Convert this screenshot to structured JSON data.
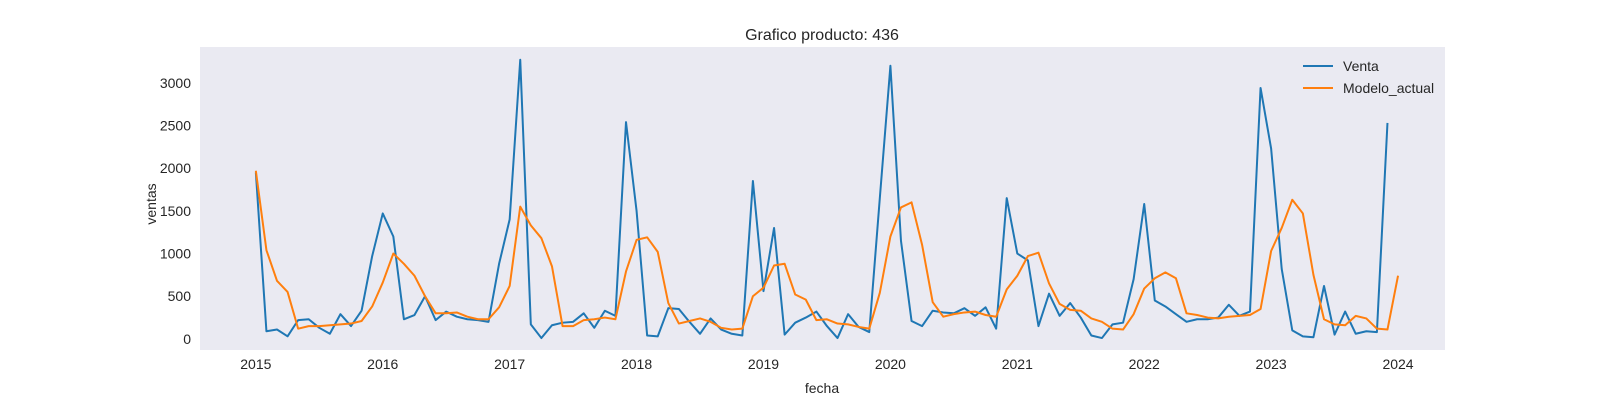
{
  "chart_data": {
    "type": "line",
    "title": "Grafico producto: 436",
    "xlabel": "fecha",
    "ylabel": "ventas",
    "x_start": "2015-01",
    "x_step": "month",
    "xlim": [
      2014.56,
      2024.37
    ],
    "ylim": [
      -130,
      3420
    ],
    "grid": false,
    "legend_position": "top-right",
    "xticks": [
      2015,
      2016,
      2017,
      2018,
      2019,
      2020,
      2021,
      2022,
      2023,
      2024
    ],
    "yticks": [
      0,
      500,
      1000,
      1500,
      2000,
      2500,
      3000
    ],
    "background_color": "#eaeaf2",
    "series": [
      {
        "name": "Venta",
        "color": "#1f77b4",
        "values": [
          1950,
          90,
          110,
          30,
          220,
          230,
          130,
          60,
          290,
          150,
          330,
          970,
          1470,
          1200,
          230,
          280,
          500,
          220,
          320,
          260,
          230,
          220,
          200,
          880,
          1400,
          3270,
          170,
          10,
          160,
          190,
          200,
          300,
          130,
          330,
          270,
          2540,
          1500,
          40,
          30,
          360,
          350,
          200,
          60,
          240,
          110,
          60,
          40,
          1850,
          560,
          1300,
          50,
          190,
          250,
          320,
          150,
          10,
          290,
          140,
          80,
          1650,
          3200,
          1150,
          210,
          150,
          330,
          310,
          300,
          360,
          270,
          370,
          120,
          1650,
          1000,
          920,
          150,
          530,
          270,
          420,
          250,
          40,
          10,
          170,
          190,
          700,
          1580,
          450,
          380,
          290,
          200,
          230,
          230,
          250,
          400,
          270,
          320,
          2940,
          2230,
          820,
          100,
          30,
          20,
          620,
          50,
          320,
          60,
          90,
          80,
          2530
        ]
      },
      {
        "name": "Modelo_actual",
        "color": "#ff7f0e",
        "values": [
          1970,
          1040,
          680,
          550,
          120,
          150,
          150,
          160,
          170,
          180,
          210,
          380,
          660,
          1000,
          880,
          740,
          500,
          300,
          300,
          310,
          260,
          230,
          230,
          370,
          620,
          1550,
          1330,
          1180,
          850,
          150,
          150,
          220,
          230,
          250,
          230,
          790,
          1160,
          1190,
          1020,
          420,
          180,
          210,
          240,
          200,
          130,
          110,
          120,
          500,
          600,
          860,
          880,
          520,
          460,
          220,
          230,
          180,
          170,
          140,
          120,
          540,
          1200,
          1540,
          1600,
          1100,
          430,
          260,
          290,
          310,
          320,
          280,
          260,
          580,
          740,
          970,
          1010,
          650,
          410,
          340,
          330,
          240,
          200,
          120,
          110,
          290,
          590,
          710,
          780,
          710,
          300,
          280,
          250,
          240,
          260,
          270,
          280,
          350,
          1030,
          1300,
          1630,
          1470,
          750,
          230,
          170,
          160,
          270,
          240,
          120,
          110,
          740
        ]
      }
    ]
  }
}
